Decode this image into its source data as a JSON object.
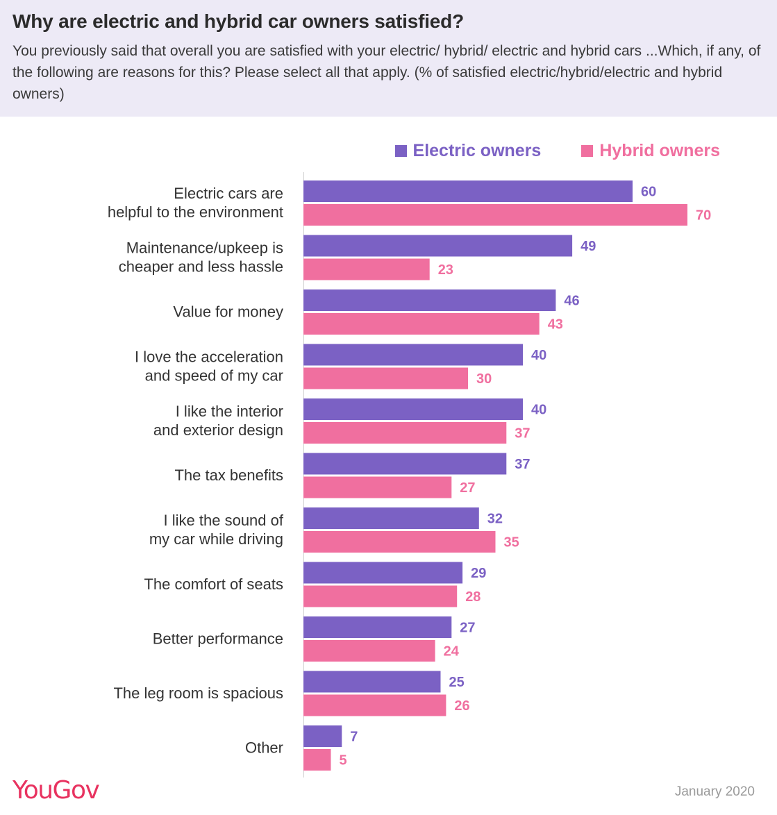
{
  "header": {
    "title": "Why are electric and hybrid car owners satisfied?",
    "subtitle": "You previously said that overall you are satisfied with your electric/ hybrid/ electric and hybrid cars ...Which, if any, of the following are reasons for this? Please select all that apply. (% of satisfied electric/hybrid/electric and hybrid owners)"
  },
  "colors": {
    "electric": "#7b61c4",
    "hybrid": "#f06f9f",
    "header_bg": "#edeaf6",
    "brand": "#e8325f"
  },
  "chart_data": {
    "type": "bar",
    "orientation": "horizontal",
    "categories": [
      [
        "Electric cars are",
        "helpful to the environment"
      ],
      [
        "Maintenance/upkeep is",
        "cheaper and less hassle"
      ],
      [
        "Value for money"
      ],
      [
        "I love the acceleration",
        "and speed of my car"
      ],
      [
        "I like the interior",
        "and exterior design"
      ],
      [
        "The tax benefits"
      ],
      [
        "I like the sound of",
        "my car while driving"
      ],
      [
        "The comfort of seats"
      ],
      [
        "Better performance"
      ],
      [
        "The leg room is spacious"
      ],
      [
        "Other"
      ]
    ],
    "series": [
      {
        "name": "Electric owners",
        "values": [
          60,
          49,
          46,
          40,
          40,
          37,
          32,
          29,
          27,
          25,
          7
        ]
      },
      {
        "name": "Hybrid owners",
        "values": [
          70,
          23,
          43,
          30,
          37,
          27,
          35,
          28,
          24,
          26,
          5
        ]
      }
    ],
    "xlim": [
      0,
      70
    ],
    "legend_position": "top-right",
    "grid": false,
    "value_labels": true
  },
  "footer": {
    "brand": "YouGov",
    "date": "January 2020"
  }
}
